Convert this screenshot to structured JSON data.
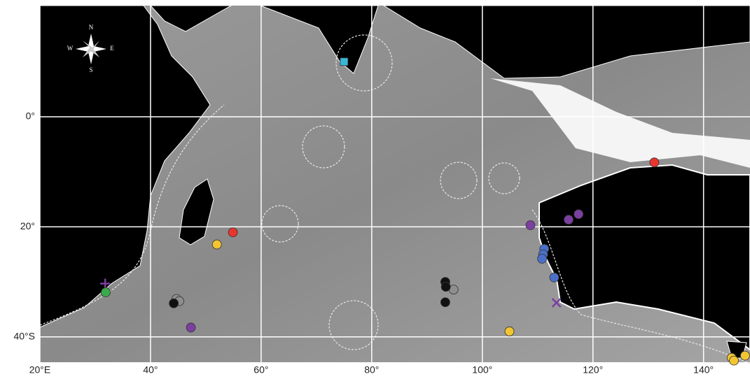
{
  "chart_data": {
    "type": "scatter",
    "xlim": [
      20,
      148.4
    ],
    "ylim": [
      -44.6,
      20.2
    ],
    "xticks": [
      {
        "value": 20,
        "label": "20°E"
      },
      {
        "value": 40,
        "label": "40°"
      },
      {
        "value": 60,
        "label": "60°"
      },
      {
        "value": 80,
        "label": "80°"
      },
      {
        "value": 100,
        "label": "100°"
      },
      {
        "value": 120,
        "label": "120°"
      },
      {
        "value": 140,
        "label": "140°"
      }
    ],
    "yticks": [
      {
        "value": 0,
        "label": "0°"
      },
      {
        "value": -20,
        "label": "20°"
      },
      {
        "value": -40,
        "label": "40°S"
      }
    ],
    "grid": true,
    "compass": {
      "n": "N",
      "e": "E",
      "s": "S",
      "w": "W"
    },
    "series": [
      {
        "color": "#38b8d8",
        "shape": "square",
        "x": [
          75
        ],
        "y": [
          10
        ]
      },
      {
        "color": "#e8352e",
        "shape": "circle",
        "x": [
          131.1,
          54.9
        ],
        "y": [
          -8.3,
          -21
        ]
      },
      {
        "color": "#f2c531",
        "shape": "circle",
        "x": [
          52,
          104.9,
          145.1,
          145.5,
          147.5
        ],
        "y": [
          -23.2,
          -39,
          -43.8,
          -44.3,
          -43.4
        ]
      },
      {
        "color": "#7b3fa0",
        "shape": "circle",
        "x": [
          47.3,
          108.7,
          115.6,
          117.4
        ],
        "y": [
          -38.3,
          -19.7,
          -18.7,
          -17.7
        ]
      },
      {
        "color": "#7b3fa0",
        "shape": "plus",
        "x": [
          31.8
        ],
        "y": [
          -30.3
        ]
      },
      {
        "color": "#7b3fa0",
        "shape": "cross",
        "x": [
          113.4
        ],
        "y": [
          -33.8
        ]
      },
      {
        "color": "#3aaa4a",
        "shape": "circle",
        "x": [
          31.9
        ],
        "y": [
          -31.9
        ]
      },
      {
        "color": "#8e8e8e",
        "shape": "circle",
        "x": [
          44.7,
          45.2,
          94.8
        ],
        "y": [
          -33.1,
          -33.5,
          -31.4
        ]
      },
      {
        "color": "#111111",
        "shape": "circle",
        "x": [
          44.2,
          93.3,
          93.4,
          93.3
        ],
        "y": [
          -33.9,
          -30.0,
          -30.9,
          -33.7
        ]
      },
      {
        "color": "#4a6fc9",
        "shape": "circle",
        "x": [
          111.2,
          111.0,
          110.8,
          113.0
        ],
        "y": [
          -24.0,
          -25.0,
          -25.8,
          -29.2
        ]
      }
    ]
  }
}
